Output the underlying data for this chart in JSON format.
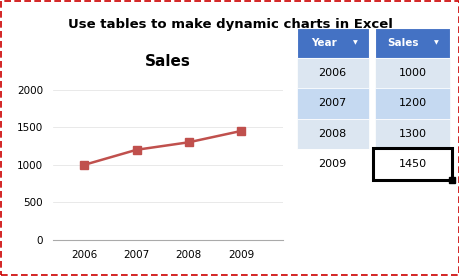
{
  "title": "Use tables to make dynamic charts in Excel",
  "title_bg": "#F5A800",
  "title_color": "#000000",
  "chart_title": "Sales",
  "years": [
    2006,
    2007,
    2008,
    2009
  ],
  "sales": [
    1000,
    1200,
    1300,
    1450
  ],
  "line_color": "#C0504D",
  "marker": "s",
  "marker_color": "#C0504D",
  "ylim": [
    0,
    2200
  ],
  "yticks": [
    0,
    500,
    1000,
    1500,
    2000
  ],
  "outer_border_color": "#CC0000",
  "fig_bg": "#FFFFFF",
  "chart_area_bg": "#F2F2F2",
  "chart_plot_bg": "#FFFFFF",
  "table_header_bg": "#4472C4",
  "table_header_color": "#FFFFFF",
  "table_row_bg1": "#DCE6F1",
  "table_row_bg2": "#C5D9F1",
  "table_last_row_bg": "#FFFFFF",
  "table_border_color": "#FFFFFF",
  "table_headers": [
    "Year",
    "Sales"
  ],
  "table_data": [
    [
      2006,
      1000
    ],
    [
      2007,
      1200
    ],
    [
      2008,
      1300
    ],
    [
      2009,
      1450
    ]
  ]
}
